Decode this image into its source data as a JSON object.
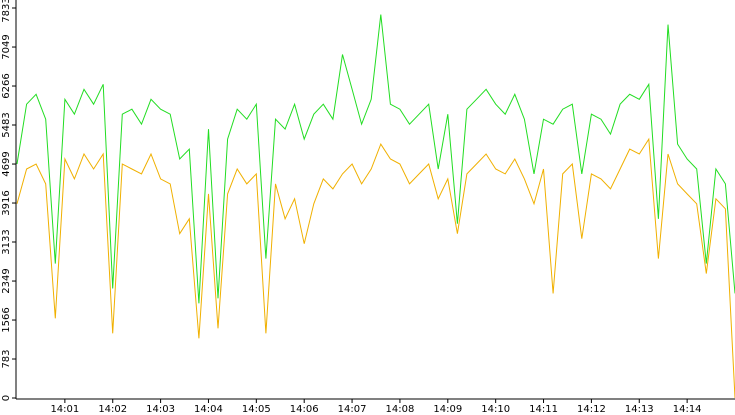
{
  "chart_data": {
    "type": "line",
    "x": [
      0,
      0.2,
      0.4,
      0.6,
      0.8,
      1.0,
      1.2,
      1.4,
      1.6,
      1.8,
      2.0,
      2.2,
      2.4,
      2.6,
      2.8,
      3.0,
      3.2,
      3.4,
      3.6,
      3.8,
      4.0,
      4.2,
      4.4,
      4.6,
      4.8,
      5.0,
      5.2,
      5.4,
      5.6,
      5.8,
      6.0,
      6.2,
      6.4,
      6.6,
      6.8,
      7.0,
      7.2,
      7.4,
      7.6,
      7.8,
      8.0,
      8.2,
      8.4,
      8.6,
      8.8,
      9.0,
      9.2,
      9.4,
      9.6,
      9.8,
      10.0,
      10.2,
      10.4,
      10.6,
      10.8,
      11.0,
      11.2,
      11.4,
      11.6,
      11.8,
      12.0,
      12.2,
      12.4,
      12.6,
      12.8,
      13.0,
      13.2,
      13.4,
      13.6,
      13.8,
      14.0,
      14.2,
      14.4,
      14.6,
      14.8,
      15.0
    ],
    "series": [
      {
        "color": "#22dd22",
        "values": [
          4700,
          5900,
          6100,
          5600,
          2700,
          6000,
          5700,
          6200,
          5900,
          6300,
          2200,
          5700,
          5800,
          5500,
          6000,
          5800,
          5700,
          4800,
          5000,
          1900,
          5400,
          2000,
          5200,
          5800,
          5600,
          5900,
          2800,
          5600,
          5400,
          5900,
          5200,
          5700,
          5900,
          5600,
          6900,
          6200,
          5500,
          6000,
          7700,
          5900,
          5800,
          5500,
          5700,
          5900,
          4600,
          5700,
          3500,
          5800,
          6000,
          6200,
          5900,
          5700,
          6100,
          5600,
          4500,
          5600,
          5500,
          5800,
          5900,
          4500,
          5700,
          5600,
          5300,
          5900,
          6100,
          6000,
          6300,
          3600,
          7500,
          5100,
          4800,
          4600,
          2700,
          4600,
          4300,
          2100
        ]
      },
      {
        "color": "#f0b000",
        "values": [
          3900,
          4600,
          4700,
          4300,
          1600,
          4800,
          4400,
          4900,
          4600,
          4900,
          1300,
          4700,
          4600,
          4500,
          4900,
          4400,
          4300,
          3300,
          3600,
          1200,
          4100,
          1400,
          4100,
          4600,
          4300,
          4500,
          1300,
          4300,
          3600,
          4000,
          3100,
          3900,
          4400,
          4200,
          4500,
          4700,
          4300,
          4600,
          5100,
          4800,
          4700,
          4300,
          4500,
          4700,
          4000,
          4400,
          3300,
          4500,
          4700,
          4900,
          4600,
          4500,
          4800,
          4400,
          3900,
          4600,
          2100,
          4500,
          4700,
          3200,
          4500,
          4400,
          4200,
          4600,
          5000,
          4900,
          5200,
          2800,
          4900,
          4300,
          4100,
          3900,
          2500,
          4000,
          3800,
          0
        ]
      }
    ],
    "xlim": [
      0,
      15
    ],
    "xticks": [
      {
        "value": 1,
        "label": "14:01"
      },
      {
        "value": 2,
        "label": "14:02"
      },
      {
        "value": 3,
        "label": "14:03"
      },
      {
        "value": 4,
        "label": "14:04"
      },
      {
        "value": 5,
        "label": "14:05"
      },
      {
        "value": 6,
        "label": "14:06"
      },
      {
        "value": 7,
        "label": "14:07"
      },
      {
        "value": 8,
        "label": "14:08"
      },
      {
        "value": 9,
        "label": "14:09"
      },
      {
        "value": 10,
        "label": "14:10"
      },
      {
        "value": 11,
        "label": "14:11"
      },
      {
        "value": 12,
        "label": "14:12"
      },
      {
        "value": 13,
        "label": "14:13"
      },
      {
        "value": 14,
        "label": "14:14"
      }
    ],
    "ylim": [
      0,
      7833
    ],
    "yticks": [
      0,
      783,
      1566,
      2349,
      3133,
      3916,
      4699,
      5483,
      6266,
      7049,
      7833
    ]
  }
}
